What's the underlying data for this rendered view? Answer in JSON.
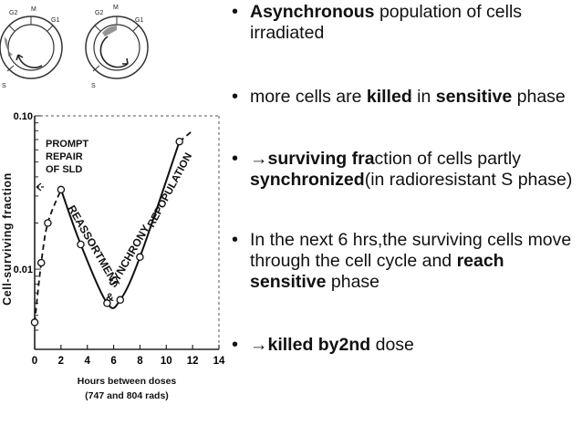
{
  "figure": {
    "cell_cycle_labels": {
      "g2": "G2",
      "m": "M",
      "g1": "G1",
      "s": "S"
    },
    "y_axis_label": "Cell-surviving fraction",
    "x_axis_label": "Hours between doses",
    "x_axis_sublabel": "(747 and 804 rads)",
    "annotations": {
      "prompt_repair_line1": "PROMPT",
      "prompt_repair_line2": "REPAIR",
      "prompt_repair_line3": "OF SLD",
      "reassortment": "REASSORTMENT",
      "ampersand": "&",
      "synchrony": "SYNCHRONY",
      "repopulation": "REPOPULATION"
    }
  },
  "chart_data": {
    "type": "line",
    "xlabel": "Hours between doses",
    "ylabel": "Cell-surviving fraction",
    "x_ticks": [
      "0",
      "2",
      "4",
      "6",
      "8",
      "10",
      "12",
      "14"
    ],
    "y_ticks": [
      "0.10",
      "0.01"
    ],
    "xlim": [
      0,
      14
    ],
    "ylim": [
      0.003,
      0.1
    ],
    "y_scale": "log",
    "points": [
      {
        "x": 0.0,
        "y": 0.0045
      },
      {
        "x": 0.5,
        "y": 0.011
      },
      {
        "x": 1.0,
        "y": 0.02
      },
      {
        "x": 2.0,
        "y": 0.033
      },
      {
        "x": 3.5,
        "y": 0.0145
      },
      {
        "x": 5.5,
        "y": 0.006
      },
      {
        "x": 6.5,
        "y": 0.0063
      },
      {
        "x": 8.0,
        "y": 0.012
      },
      {
        "x": 11.0,
        "y": 0.068
      },
      {
        "x": 12.0,
        "y": 0.08
      }
    ]
  },
  "bullets": [
    {
      "parts": [
        {
          "t": "Asynchronous",
          "b": true
        },
        {
          "t": " population of cells irradiated",
          "b": false
        }
      ]
    },
    {
      "parts": [
        {
          "t": " more cells are ",
          "b": false
        },
        {
          "t": "killed",
          "b": true
        },
        {
          "t": " in ",
          "b": false
        },
        {
          "t": "sensitive",
          "b": true
        },
        {
          "t": " phase",
          "b": false
        }
      ]
    },
    {
      "parts": [
        {
          "t": "→surviving fra",
          "b": true
        },
        {
          "t": "ction of cells partly ",
          "b": false
        },
        {
          "t": "synchronized",
          "b": true
        },
        {
          "t": "(in radioresistant S phase)",
          "b": false
        }
      ]
    },
    {
      "parts": [
        {
          "t": "In the next 6 hrs,the surviving cells move through the cell cycle and ",
          "b": false
        },
        {
          "t": "reach sensitive",
          "b": true
        },
        {
          "t": " phase",
          "b": false
        }
      ]
    },
    {
      "parts": [
        {
          "t": "→killed by2nd",
          "b": true
        },
        {
          "t": " dose",
          "b": false
        }
      ]
    }
  ]
}
